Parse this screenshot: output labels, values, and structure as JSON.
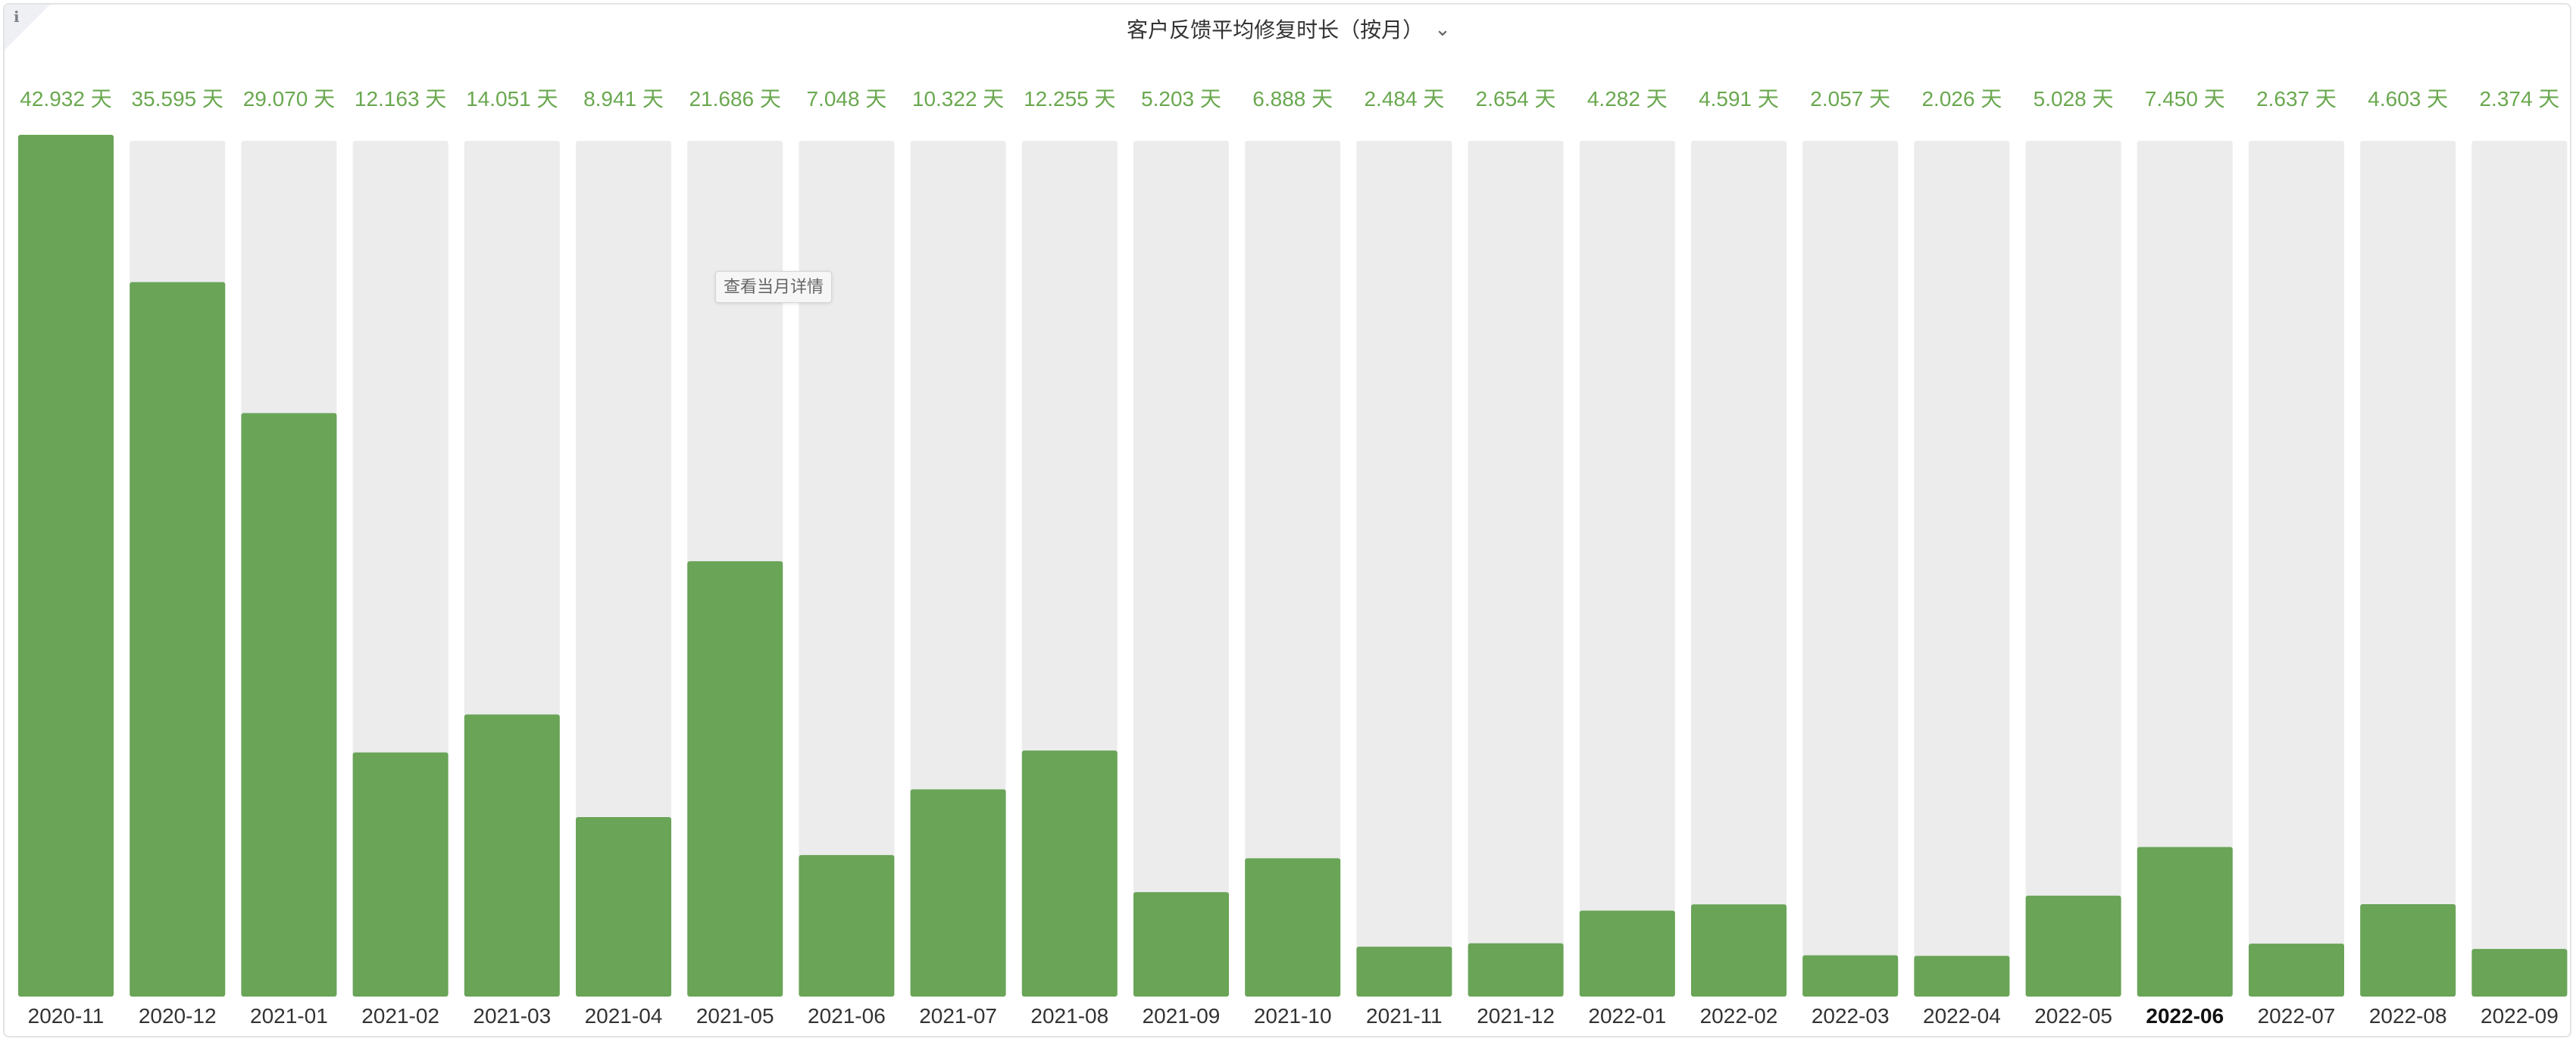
{
  "panel": {
    "info_icon": "info-icon",
    "title": "客户反馈平均修复时长（按月）",
    "menu_icon": "chevron-down-icon",
    "menu_glyph": "⌄",
    "tooltip": "查看当月详情"
  },
  "colors": {
    "bar": "#69a457",
    "track": "#ececec",
    "value_label": "#6aa84f",
    "tick_label": "#333333"
  },
  "chart_data": {
    "type": "bar",
    "title": "客户反馈平均修复时长（按月）",
    "xlabel": "",
    "ylabel": "",
    "grid": false,
    "legend": "none",
    "unit": "天",
    "categories": [
      "2020-11",
      "2020-12",
      "2021-01",
      "2021-02",
      "2021-03",
      "2021-04",
      "2021-05",
      "2021-06",
      "2021-07",
      "2021-08",
      "2021-09",
      "2021-10",
      "2021-11",
      "2021-12",
      "2022-01",
      "2022-02",
      "2022-03",
      "2022-04",
      "2022-05",
      "2022-06",
      "2022-07",
      "2022-08",
      "2022-09"
    ],
    "values": [
      42.932,
      35.595,
      29.07,
      12.163,
      14.051,
      8.941,
      21.686,
      7.048,
      10.322,
      12.255,
      5.203,
      6.888,
      2.484,
      2.654,
      4.282,
      4.591,
      2.057,
      2.026,
      5.028,
      7.45,
      2.637,
      4.603,
      2.374
    ],
    "value_labels": [
      "42.932 天",
      "35.595 天",
      "29.070 天",
      "12.163 天",
      "14.051 天",
      "8.941 天",
      "21.686 天",
      "7.048 天",
      "10.322 天",
      "12.255 天",
      "5.203 天",
      "6.888 天",
      "2.484 天",
      "2.654 天",
      "4.282 天",
      "4.591 天",
      "2.057 天",
      "2.026 天",
      "5.028 天",
      "7.450 天",
      "2.637 天",
      "4.603 天",
      "2.374 天"
    ],
    "ylim": [
      0,
      42.932
    ],
    "highlighted_category": "2022-06"
  }
}
